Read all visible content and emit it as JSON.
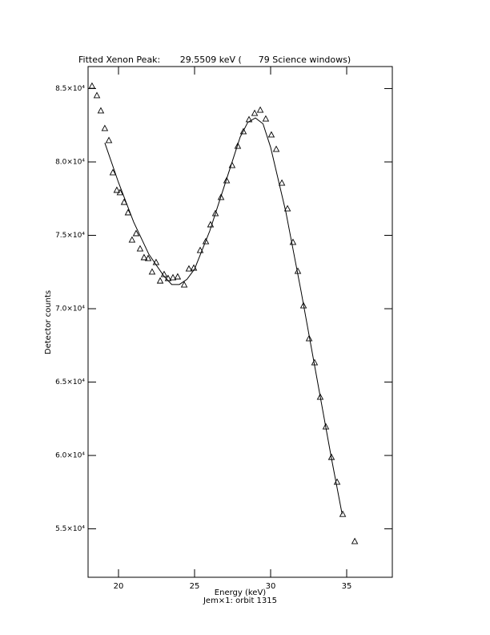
{
  "chart_data": {
    "type": "scatter",
    "title": "Fitted Xenon Peak:       29.5509 keV (      79 Science windows)",
    "x_label": "Energy (keV)",
    "subtitle": "Jem×1: orbit 1315",
    "y_label": "Detector counts",
    "xlim": [
      18,
      38
    ],
    "xticks": [
      20,
      25,
      30,
      35
    ],
    "ylim": [
      51700,
      86500
    ],
    "yticks": [
      {
        "value": 55000,
        "label": "5.5×10⁴"
      },
      {
        "value": 60000,
        "label": "6.0×10⁴"
      },
      {
        "value": 65000,
        "label": "6.5×10⁴"
      },
      {
        "value": 70000,
        "label": "7.0×10⁴"
      },
      {
        "value": 75000,
        "label": "7.5×10⁴"
      },
      {
        "value": 80000,
        "label": "8.0×10⁴"
      },
      {
        "value": 85000,
        "label": "8.5×10⁴"
      }
    ],
    "series": [
      {
        "style": "markers",
        "marker": "triangle",
        "color": "#000000",
        "x": [
          18.26,
          18.58,
          18.84,
          19.1,
          19.37,
          19.63,
          19.89,
          20.1,
          20.37,
          20.63,
          20.89,
          21.16,
          21.42,
          21.68,
          21.95,
          22.21,
          22.47,
          22.74,
          23.0,
          23.26,
          23.58,
          23.89,
          24.32,
          24.63,
          24.95,
          25.37,
          25.74,
          26.05,
          26.37,
          26.74,
          27.11,
          27.47,
          27.84,
          28.21,
          28.58,
          28.95,
          29.32,
          29.68,
          30.05,
          30.37,
          30.74,
          31.11,
          31.47,
          31.79,
          32.16,
          32.53,
          32.89,
          33.26,
          33.63,
          34.0,
          34.37,
          34.74,
          35.53
        ],
        "values": [
          85160,
          84510,
          83470,
          82270,
          81450,
          79260,
          78060,
          77900,
          77240,
          76530,
          74670,
          75110,
          74070,
          73470,
          73410,
          72490,
          73140,
          71880,
          72320,
          72050,
          72100,
          72160,
          71610,
          72700,
          72760,
          73960,
          74560,
          75710,
          76470,
          77570,
          78710,
          79750,
          81060,
          82050,
          82870,
          83300,
          83520,
          82920,
          81830,
          80850,
          78550,
          76800,
          74510,
          72540,
          70190,
          67950,
          66310,
          63960,
          61940,
          59860,
          58170,
          55980,
          54130
        ]
      },
      {
        "style": "line",
        "color": "#000000",
        "x": [
          19.1,
          20,
          21,
          22,
          23,
          23.5,
          24,
          24.5,
          25,
          26,
          27,
          28,
          28.5,
          29,
          29.5,
          30,
          31,
          32,
          33,
          34,
          34.7
        ],
        "values": [
          81300,
          78600,
          75900,
          73700,
          72200,
          71650,
          71650,
          72000,
          72700,
          75300,
          78500,
          81700,
          82700,
          83000,
          82600,
          81000,
          76600,
          71200,
          65500,
          59800,
          56000
        ]
      }
    ]
  }
}
